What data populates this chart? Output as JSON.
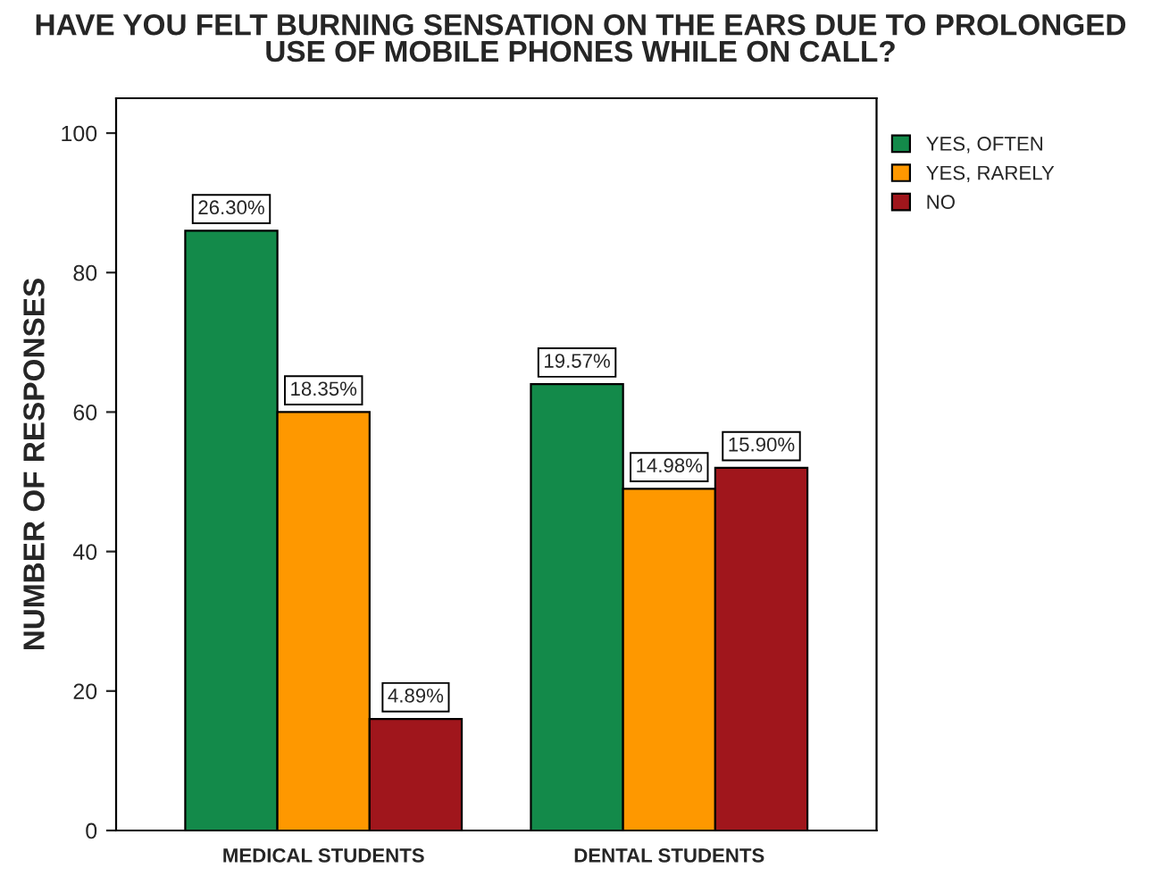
{
  "chart_data": {
    "type": "bar",
    "title": "HAVE YOU FELT BURNING SENSATION ON THE EARS DUE TO PROLONGED\nUSE OF MOBILE PHONES WHILE ON CALL?",
    "ylabel": "NUMBER OF RESPONSES",
    "categories": [
      "MEDICAL STUDENTS",
      "DENTAL STUDENTS"
    ],
    "series": [
      {
        "name": "YES, OFTEN",
        "color": "#138a4a",
        "values": [
          86,
          64
        ]
      },
      {
        "name": "YES, RARELY",
        "color": "#fe9800",
        "values": [
          60,
          49
        ]
      },
      {
        "name": "NO",
        "color": "#a0161c",
        "values": [
          16,
          52
        ]
      }
    ],
    "annotations": [
      "26.30%",
      "18.35%",
      "4.89%",
      "19.57%",
      "14.98%",
      "15.90%"
    ],
    "ylim": [
      0,
      105
    ],
    "yticks": [
      0,
      20,
      40,
      60,
      80,
      100
    ],
    "grid": false,
    "legend": "top right"
  }
}
